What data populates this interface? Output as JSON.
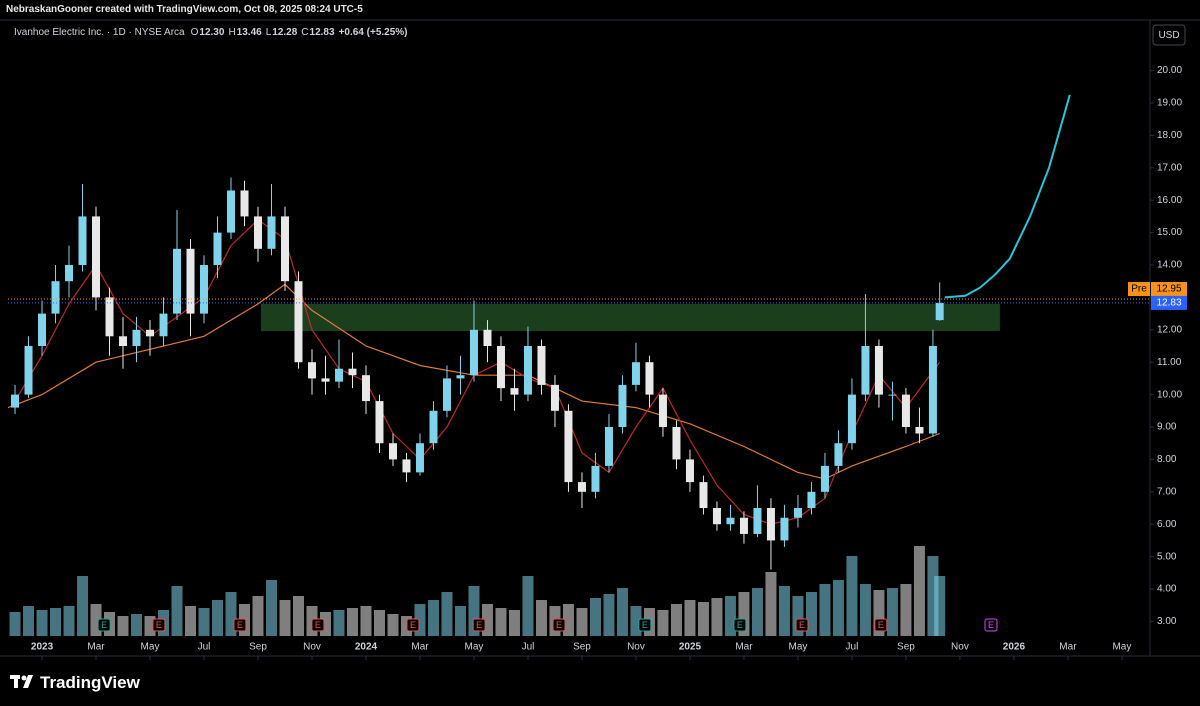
{
  "header": "NebraskanGooner created with TradingView.com, Oct 08, 2025 08:24 UTC-5",
  "footer": "TradingView",
  "chart_data": {
    "type": "candlestick",
    "title": "Ivanhoe Electric Inc. · 1D · NYSE Arca",
    "ohlc_legend": [
      {
        "key": "O",
        "value": "12.30"
      },
      {
        "key": "H",
        "value": "13.46"
      },
      {
        "key": "L",
        "value": "12.28"
      },
      {
        "key": "C",
        "value": "12.83"
      }
    ],
    "change": "+0.64 (+5.25%)",
    "currency": "USD",
    "up_color": "#7fd3ea",
    "down_color": "#e8e8e8",
    "x": [
      -1,
      -0.5,
      0,
      0.5,
      1,
      1.5,
      2,
      2.5,
      3,
      3.5,
      4,
      4.5,
      5,
      5.5,
      6,
      6.5,
      7,
      7.5,
      8,
      8.5,
      9,
      9.5,
      10,
      10.5,
      11,
      11.5,
      12,
      12.5,
      13,
      13.5,
      14,
      14.5,
      15,
      15.5,
      16,
      16.5,
      17,
      17.5,
      18,
      18.5,
      19,
      19.5,
      20,
      20.5,
      21,
      21.5,
      22,
      22.5,
      23,
      23.5,
      24,
      24.5,
      25,
      25.5,
      26,
      26.5,
      27,
      27.5,
      28,
      28.5,
      29,
      29.5,
      30,
      30.5,
      31,
      31.5,
      32,
      32.5,
      33,
      33.25
    ],
    "open": [
      9.6,
      10.0,
      11.5,
      12.5,
      13.5,
      14.0,
      15.5,
      13.0,
      11.8,
      11.5,
      12.0,
      11.8,
      12.5,
      14.5,
      12.5,
      14.0,
      15.0,
      16.3,
      15.5,
      14.5,
      15.5,
      13.5,
      11.0,
      10.5,
      10.4,
      10.8,
      10.6,
      9.8,
      8.5,
      8.0,
      7.6,
      8.5,
      9.5,
      10.5,
      10.6,
      12.0,
      11.5,
      10.2,
      10.0,
      11.5,
      10.3,
      9.5,
      7.3,
      7.0,
      7.8,
      9.0,
      10.3,
      11.0,
      10.0,
      9.0,
      8.0,
      7.3,
      6.5,
      6.0,
      6.2,
      5.7,
      6.5,
      5.5,
      6.2,
      6.5,
      7.0,
      7.8,
      8.5,
      10.0,
      11.5,
      10.0,
      10.0,
      9.0,
      8.8,
      12.3
    ],
    "high": [
      10.3,
      11.8,
      12.9,
      14.0,
      14.6,
      16.5,
      15.8,
      13.3,
      12.4,
      12.4,
      12.3,
      13.0,
      15.7,
      14.8,
      14.3,
      15.5,
      16.7,
      16.6,
      15.8,
      16.5,
      15.8,
      13.8,
      11.4,
      11.2,
      11.7,
      11.3,
      10.9,
      10.0,
      8.8,
      8.2,
      8.8,
      9.8,
      10.9,
      11.2,
      12.9,
      12.3,
      11.8,
      10.8,
      12.1,
      11.7,
      10.6,
      9.7,
      7.6,
      8.2,
      9.4,
      10.6,
      11.6,
      11.2,
      10.2,
      9.2,
      8.3,
      7.5,
      6.7,
      6.6,
      6.4,
      7.2,
      6.8,
      6.6,
      6.9,
      7.3,
      8.2,
      8.9,
      10.5,
      13.1,
      11.7,
      10.4,
      10.2,
      9.6,
      12.0,
      13.46
    ],
    "low": [
      9.4,
      9.9,
      11.2,
      12.2,
      13.0,
      13.8,
      12.6,
      11.2,
      10.8,
      11.0,
      11.2,
      11.5,
      12.3,
      11.8,
      12.2,
      13.6,
      14.8,
      15.2,
      14.1,
      14.3,
      13.2,
      10.8,
      10.0,
      10.0,
      10.2,
      10.2,
      9.4,
      8.2,
      7.8,
      7.3,
      7.5,
      8.3,
      9.3,
      10.0,
      10.4,
      11.0,
      9.8,
      9.5,
      9.8,
      10.0,
      9.0,
      7.0,
      6.5,
      6.8,
      7.6,
      8.8,
      10.1,
      9.6,
      8.7,
      7.7,
      7.0,
      6.3,
      5.8,
      5.8,
      5.4,
      5.6,
      4.6,
      5.3,
      5.9,
      6.3,
      6.8,
      7.6,
      8.3,
      9.8,
      9.6,
      9.2,
      8.8,
      8.5,
      8.7,
      12.28
    ],
    "close": [
      10.0,
      11.5,
      12.5,
      13.5,
      14.0,
      15.5,
      13.0,
      11.8,
      11.5,
      12.0,
      11.8,
      12.5,
      14.5,
      12.5,
      14.0,
      15.0,
      16.3,
      15.5,
      14.5,
      15.5,
      13.5,
      11.0,
      10.5,
      10.4,
      10.8,
      10.6,
      9.8,
      8.5,
      8.0,
      7.6,
      8.5,
      9.5,
      10.5,
      10.6,
      12.0,
      11.5,
      10.2,
      10.0,
      11.5,
      10.3,
      9.5,
      7.3,
      7.0,
      7.8,
      9.0,
      10.3,
      11.0,
      10.0,
      9.0,
      8.0,
      7.3,
      6.5,
      6.0,
      6.2,
      5.7,
      6.5,
      5.5,
      6.2,
      6.5,
      7.0,
      7.8,
      8.5,
      10.0,
      11.5,
      10.0,
      10.0,
      9.0,
      8.8,
      11.5,
      12.83
    ],
    "volume": [
      1.2,
      1.5,
      1.3,
      1.4,
      1.5,
      3.0,
      1.6,
      1.2,
      1.0,
      1.1,
      1.0,
      1.3,
      2.5,
      1.5,
      1.4,
      1.8,
      2.2,
      1.6,
      2.0,
      2.8,
      1.8,
      2.0,
      1.5,
      1.2,
      1.3,
      1.4,
      1.5,
      1.3,
      1.1,
      1.0,
      1.6,
      1.8,
      2.2,
      1.5,
      2.5,
      1.6,
      1.4,
      1.3,
      3.0,
      1.8,
      1.5,
      1.6,
      1.4,
      1.9,
      2.1,
      2.4,
      1.5,
      1.4,
      1.3,
      1.6,
      1.8,
      1.7,
      1.9,
      2.0,
      2.2,
      2.4,
      3.2,
      2.5,
      2.0,
      2.2,
      2.6,
      2.8,
      4.0,
      2.6,
      2.3,
      2.4,
      2.6,
      4.5,
      4.0,
      3.0
    ],
    "overlays": [
      {
        "type": "line",
        "color": "#e07b39",
        "x": [
          -1.26,
          0,
          2,
          4,
          6,
          8,
          9,
          10,
          12,
          14,
          16,
          18,
          20,
          22,
          24,
          26,
          28,
          29,
          30,
          31,
          32,
          33.25
        ],
        "values": [
          9.6,
          10.0,
          11.0,
          11.4,
          11.8,
          12.8,
          13.4,
          12.6,
          11.5,
          10.9,
          10.6,
          10.6,
          9.8,
          9.6,
          9.1,
          8.4,
          7.6,
          7.4,
          7.8,
          8.1,
          8.4,
          8.8
        ]
      },
      {
        "type": "line",
        "color": "#c0262d",
        "x": [
          -1,
          0,
          1,
          2,
          3,
          4,
          5,
          6,
          7,
          8,
          9,
          10,
          11,
          12,
          13,
          14,
          15,
          16,
          17,
          18,
          19,
          20,
          21,
          22,
          23,
          24,
          25,
          26,
          27,
          28,
          29,
          30,
          31,
          32,
          33.25
        ],
        "values": [
          9.8,
          11.2,
          12.8,
          14.0,
          12.5,
          11.8,
          12.4,
          13.0,
          14.6,
          15.4,
          14.8,
          12.0,
          10.8,
          10.4,
          8.8,
          8.0,
          9.0,
          10.6,
          11.0,
          10.5,
          10.2,
          8.2,
          7.6,
          9.0,
          10.2,
          8.6,
          7.2,
          6.3,
          6.0,
          6.2,
          6.8,
          8.8,
          10.6,
          9.6,
          11.0
        ]
      },
      {
        "type": "line",
        "color": "#26c6da",
        "x": [
          33.44,
          34.2,
          34.74,
          35.3,
          35.85,
          36.6,
          37.3,
          38.07
        ],
        "values": [
          13.0,
          13.05,
          13.3,
          13.7,
          14.2,
          15.5,
          17.0,
          19.25
        ]
      }
    ],
    "zone": {
      "x": [
        8.11,
        35.48
      ],
      "y": [
        11.96,
        12.8
      ],
      "color": "#1e4620"
    },
    "price_lines": [
      {
        "label": "Pre",
        "value": 12.95,
        "color": "#f7931a"
      },
      {
        "value": 12.83,
        "color": "#2962ff"
      }
    ],
    "events": [
      {
        "x": 2.3,
        "label": "E",
        "color": "#26a69a"
      },
      {
        "x": 4.33,
        "label": "E",
        "color": "#ef5350"
      },
      {
        "x": 7.33,
        "label": "E",
        "color": "#ef5350"
      },
      {
        "x": 10.22,
        "label": "E",
        "color": "#ef5350"
      },
      {
        "x": 13.74,
        "label": "E",
        "color": "#ef5350"
      },
      {
        "x": 16.19,
        "label": "E",
        "color": "#ef5350"
      },
      {
        "x": 19.15,
        "label": "E",
        "color": "#ef5350"
      },
      {
        "x": 22.33,
        "label": "E",
        "color": "#26a69a"
      },
      {
        "x": 25.85,
        "label": "E",
        "color": "#26a69a"
      },
      {
        "x": 28.15,
        "label": "E",
        "color": "#ef5350"
      },
      {
        "x": 31.07,
        "label": "E",
        "color": "#ef5350"
      },
      {
        "x": 35.15,
        "label": "E",
        "color": "#e040fb"
      }
    ],
    "xlim": [
      -1.26,
      41.04
    ],
    "xticks": [
      {
        "value": 0,
        "label": "2023"
      },
      {
        "value": 2,
        "label": "Mar"
      },
      {
        "value": 4,
        "label": "May"
      },
      {
        "value": 6,
        "label": "Jul"
      },
      {
        "value": 8,
        "label": "Sep"
      },
      {
        "value": 10,
        "label": "Nov"
      },
      {
        "value": 12,
        "label": "2024"
      },
      {
        "value": 14,
        "label": "Mar"
      },
      {
        "value": 16,
        "label": "May"
      },
      {
        "value": 18,
        "label": "Jul"
      },
      {
        "value": 20,
        "label": "Sep"
      },
      {
        "value": 22,
        "label": "Nov"
      },
      {
        "value": 24,
        "label": "2025"
      },
      {
        "value": 26,
        "label": "Mar"
      },
      {
        "value": 28,
        "label": "May"
      },
      {
        "value": 30,
        "label": "Jul"
      },
      {
        "value": 32,
        "label": "Sep"
      },
      {
        "value": 34,
        "label": "Nov"
      },
      {
        "value": 36,
        "label": "2026"
      },
      {
        "value": 38,
        "label": "Mar"
      },
      {
        "value": 40,
        "label": "May"
      }
    ],
    "ylim": [
      2.55,
      21.5
    ],
    "yticks": [
      {
        "value": 3,
        "label": "3.00"
      },
      {
        "value": 4,
        "label": "4.00"
      },
      {
        "value": 5,
        "label": "5.00"
      },
      {
        "value": 6,
        "label": "6.00"
      },
      {
        "value": 7,
        "label": "7.00"
      },
      {
        "value": 8,
        "label": "8.00"
      },
      {
        "value": 9,
        "label": "9.00"
      },
      {
        "value": 10,
        "label": "10.00"
      },
      {
        "value": 11,
        "label": "11.00"
      },
      {
        "value": 12,
        "label": "12.00"
      },
      {
        "value": 13,
        "label": "13.00"
      },
      {
        "value": 14,
        "label": "14.00"
      },
      {
        "value": 15,
        "label": "15.00"
      },
      {
        "value": 16,
        "label": "16.00"
      },
      {
        "value": 17,
        "label": "17.00"
      },
      {
        "value": 18,
        "label": "18.00"
      },
      {
        "value": 19,
        "label": "19.00"
      },
      {
        "value": 20,
        "label": "20.00"
      }
    ]
  }
}
